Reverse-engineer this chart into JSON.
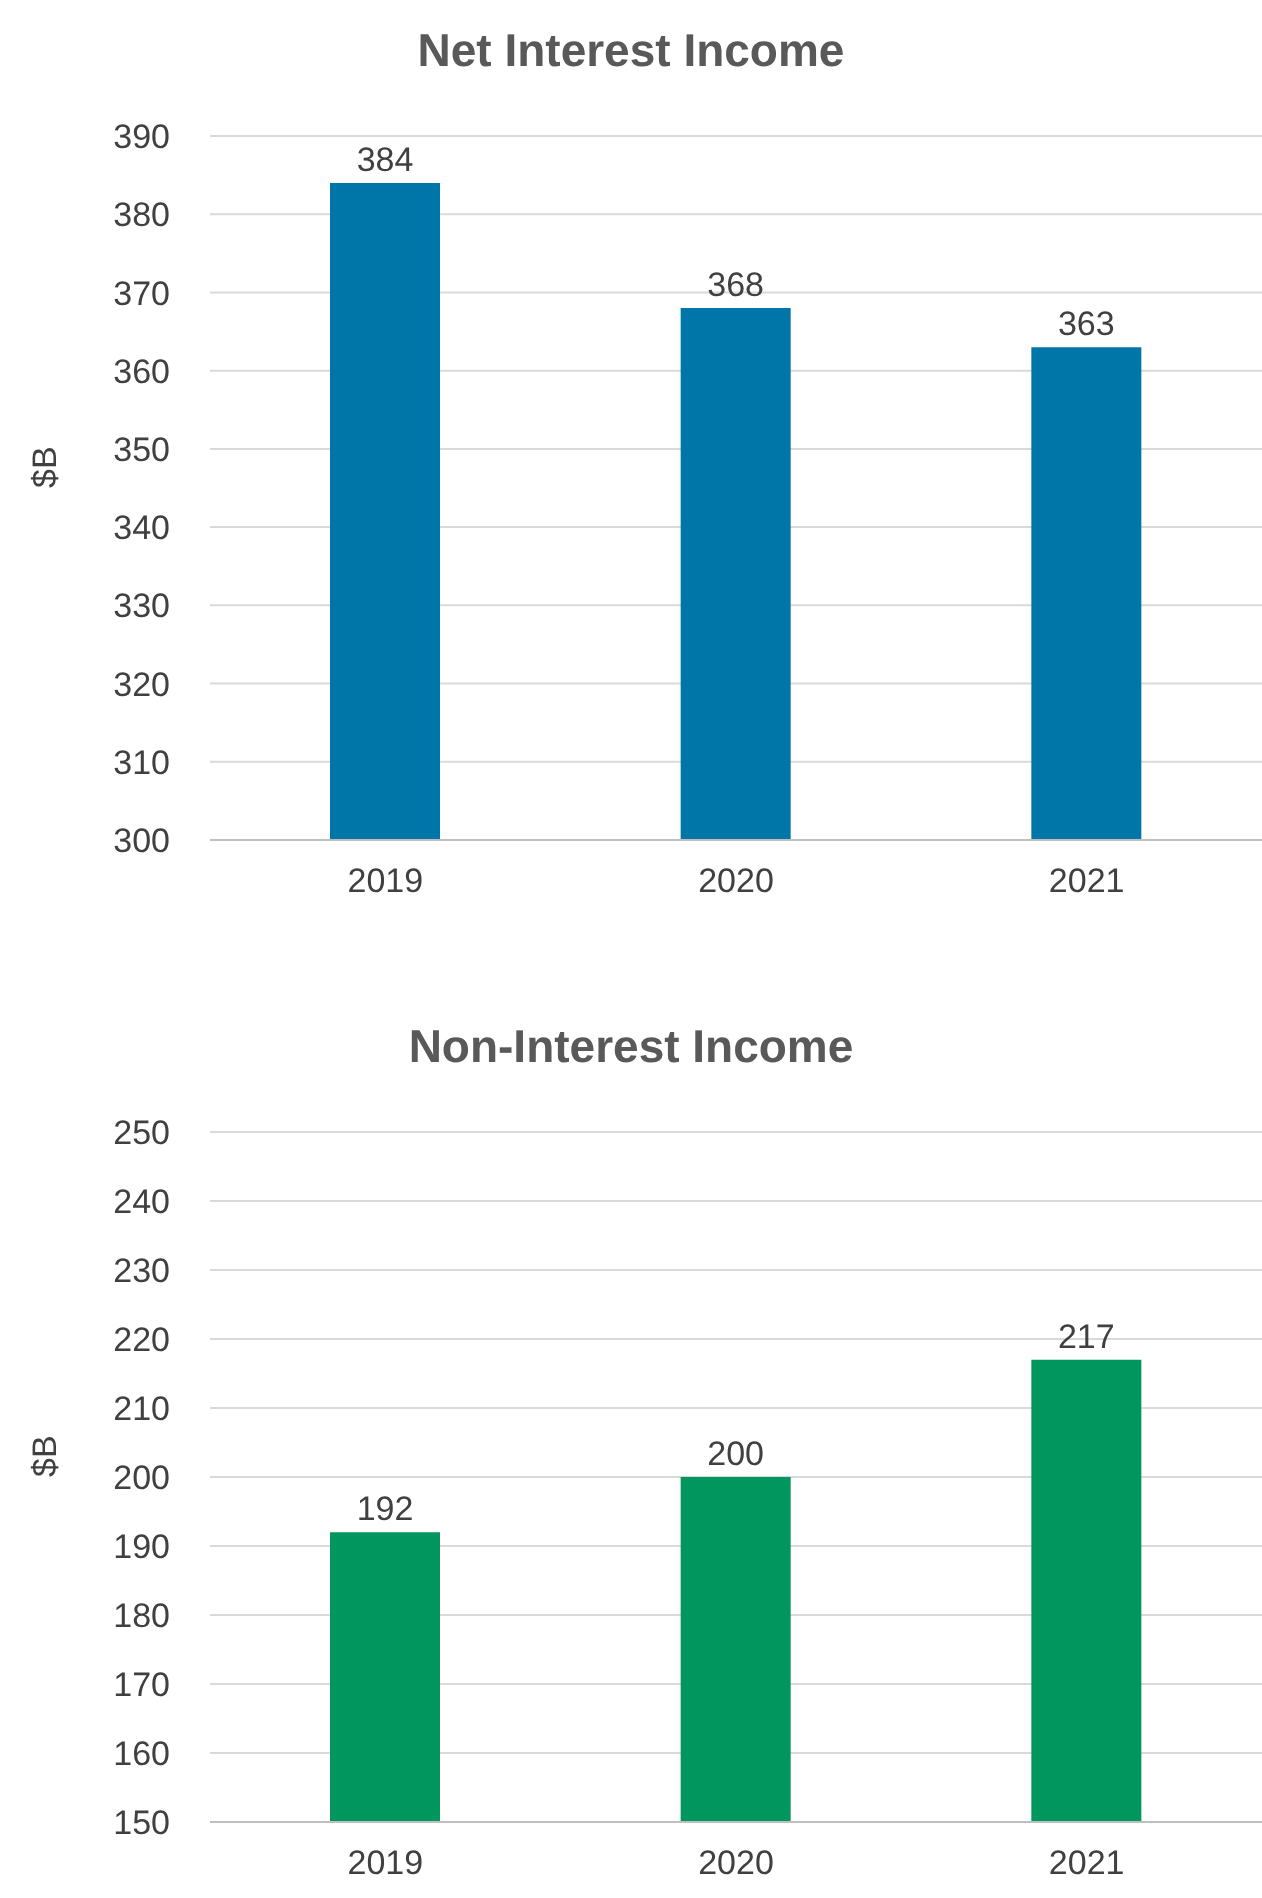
{
  "chart_data": [
    {
      "type": "bar",
      "title": "Net Interest Income",
      "ylabel": "$B",
      "categories": [
        "2019",
        "2020",
        "2021"
      ],
      "values": [
        384,
        368,
        363
      ],
      "color": "#0076a8",
      "ylim": [
        300,
        390
      ],
      "yticks": [
        300,
        310,
        320,
        330,
        340,
        350,
        360,
        370,
        380,
        390
      ],
      "grid": "y",
      "data_labels": true
    },
    {
      "type": "bar",
      "title": "Non-Interest Income",
      "ylabel": "$B",
      "categories": [
        "2019",
        "2020",
        "2021"
      ],
      "values": [
        192,
        200,
        217
      ],
      "color": "#00965e",
      "ylim": [
        150,
        250
      ],
      "yticks": [
        150,
        160,
        170,
        180,
        190,
        200,
        210,
        220,
        230,
        240,
        250
      ],
      "grid": "y",
      "data_labels": true
    }
  ]
}
